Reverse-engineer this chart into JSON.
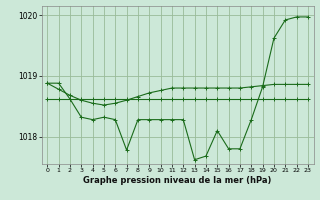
{
  "bg_color": "#cce8d8",
  "grid_color": "#99bb99",
  "line_color": "#1a6b1a",
  "marker_color": "#1a6b1a",
  "xlabel": "Graphe pression niveau de la mer (hPa)",
  "ylim": [
    1017.55,
    1020.15
  ],
  "xlim": [
    -0.5,
    23.5
  ],
  "yticks": [
    1018,
    1019,
    1020
  ],
  "xticks": [
    0,
    1,
    2,
    3,
    4,
    5,
    6,
    7,
    8,
    9,
    10,
    11,
    12,
    13,
    14,
    15,
    16,
    17,
    18,
    19,
    20,
    21,
    22,
    23
  ],
  "series": [
    [
      1018.88,
      1018.88,
      1018.62,
      1018.32,
      1018.28,
      1018.32,
      1018.28,
      1017.78,
      1018.28,
      1018.28,
      1018.28,
      1018.28,
      1018.28,
      1017.62,
      1017.68,
      1018.1,
      1017.8,
      1017.8,
      1018.28,
      1018.82,
      1019.62,
      1019.92,
      1019.97,
      1019.97
    ],
    [
      1018.62,
      1018.62,
      1018.62,
      1018.62,
      1018.62,
      1018.62,
      1018.62,
      1018.62,
      1018.62,
      1018.62,
      1018.62,
      1018.62,
      1018.62,
      1018.62,
      1018.62,
      1018.62,
      1018.62,
      1018.62,
      1018.62,
      1018.62,
      1018.62,
      1018.62,
      1018.62,
      1018.62
    ],
    [
      1018.88,
      1018.78,
      1018.68,
      1018.6,
      1018.55,
      1018.52,
      1018.55,
      1018.6,
      1018.66,
      1018.72,
      1018.76,
      1018.8,
      1018.8,
      1018.8,
      1018.8,
      1018.8,
      1018.8,
      1018.8,
      1018.82,
      1018.84,
      1018.86,
      1018.86,
      1018.86,
      1018.86
    ]
  ]
}
